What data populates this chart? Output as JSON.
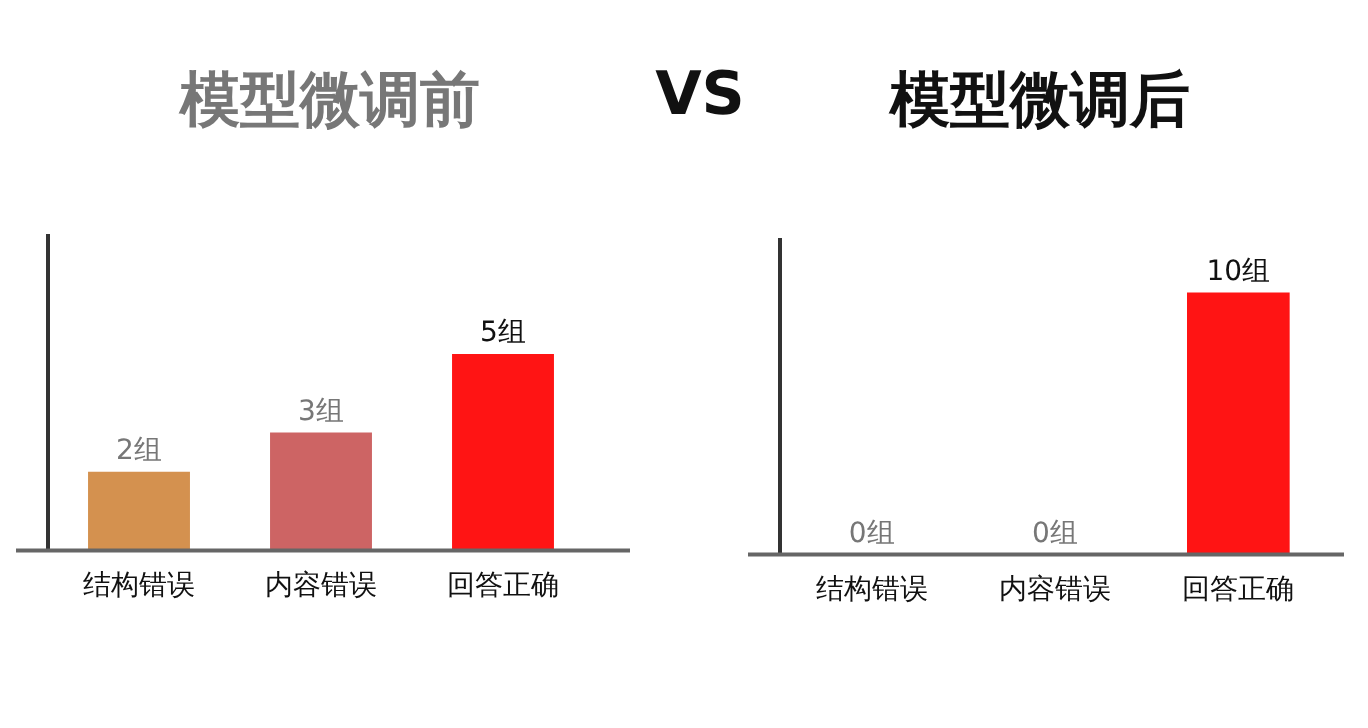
{
  "chart_data": [
    {
      "type": "bar",
      "title": "模型微调前",
      "categories": [
        "结构错误",
        "内容错误",
        "回答正确"
      ],
      "values": [
        2,
        3,
        5
      ],
      "colors": [
        "#d4914f",
        "#cd6464",
        "#ff1414"
      ],
      "value_labels": [
        "2组",
        "3组",
        "5组"
      ],
      "annotations": [
        "VS"
      ],
      "grid": false,
      "legend": false
    },
    {
      "type": "bar",
      "title": "模型微调后",
      "categories": [
        "结构错误",
        "内容错误",
        "回答正确"
      ],
      "values": [
        0,
        0,
        10
      ],
      "colors": [
        "#d4914f",
        "#cd6464",
        "#ff1414"
      ],
      "value_labels": [
        "0组",
        "0组",
        "10组"
      ],
      "grid": false,
      "legend": false
    }
  ]
}
